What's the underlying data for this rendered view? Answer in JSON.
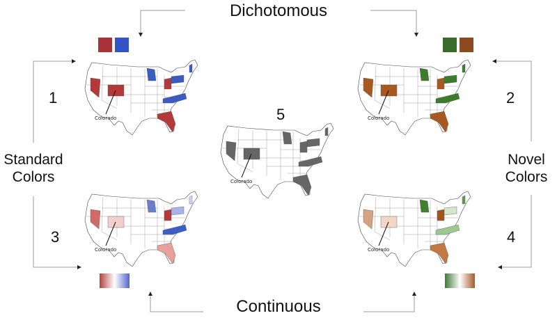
{
  "labels": {
    "top": "Dichotomous",
    "bottom": "Continuous",
    "left_line1": "Standard",
    "left_line2": "Colors",
    "right_line1": "Novel",
    "right_line2": "Colors"
  },
  "panels": [
    {
      "number": "1",
      "scheme": "standard-dichotomous",
      "annotation": "Colorado",
      "legend": {
        "type": "swatches",
        "colors": [
          "#a8323a",
          "#3453c4"
        ]
      }
    },
    {
      "number": "2",
      "scheme": "novel-dichotomous",
      "annotation": "Colorado",
      "legend": {
        "type": "swatches",
        "colors": [
          "#3a6b2a",
          "#8b4a1f"
        ]
      }
    },
    {
      "number": "3",
      "scheme": "standard-continuous",
      "annotation": "Colorado",
      "legend": {
        "type": "gradient",
        "colors": [
          "#b5423f",
          "#ffffff",
          "#5565cf"
        ]
      }
    },
    {
      "number": "4",
      "scheme": "novel-continuous",
      "annotation": "Colorado",
      "legend": {
        "type": "gradient",
        "colors": [
          "#3e7a33",
          "#ffffff",
          "#a85a2a"
        ]
      }
    },
    {
      "number": "5",
      "scheme": "grayscale",
      "annotation": "Colorado",
      "legend": null
    }
  ],
  "state_fills": {
    "p1": {
      "NV": "#b23a3a",
      "CO": "#b23a3a",
      "WI": "#3a5bc0",
      "OH": "#b23a3a",
      "PA": "#3a5bc0",
      "NC": "#3a5bc0",
      "NH": "#3a5bc0",
      "FL": "#b23a3a"
    },
    "p2": {
      "NV": "#a65a1f",
      "CO": "#a65a1f",
      "WI": "#3c7c2c",
      "OH": "#a65a1f",
      "PA": "#3c7c2c",
      "NC": "#3c7c2c",
      "NH": "#3c7c2c",
      "FL": "#a65a1f"
    },
    "p3": {
      "NV": "#cf6a64",
      "CO": "#f2cfca",
      "WI": "#6a7ed0",
      "OH": "#b8383a",
      "PA": "#a9b3e8",
      "NC": "#3d5ec6",
      "NH": "#d0d6f2",
      "FL": "#e9a09a"
    },
    "p4": {
      "NV": "#d4a382",
      "CO": "#f1d7c4",
      "WI": "#3f7f2f",
      "OH": "#a3541c",
      "PA": "#d4e6cd",
      "NC": "#9ec792",
      "NH": "#5f9a4f",
      "FL": "#c27944"
    },
    "p5": {
      "NV": "#666666",
      "CO": "#666666",
      "WI": "#666666",
      "OH": "#666666",
      "PA": "#666666",
      "NC": "#666666",
      "NH": "#666666",
      "FL": "#666666"
    }
  }
}
